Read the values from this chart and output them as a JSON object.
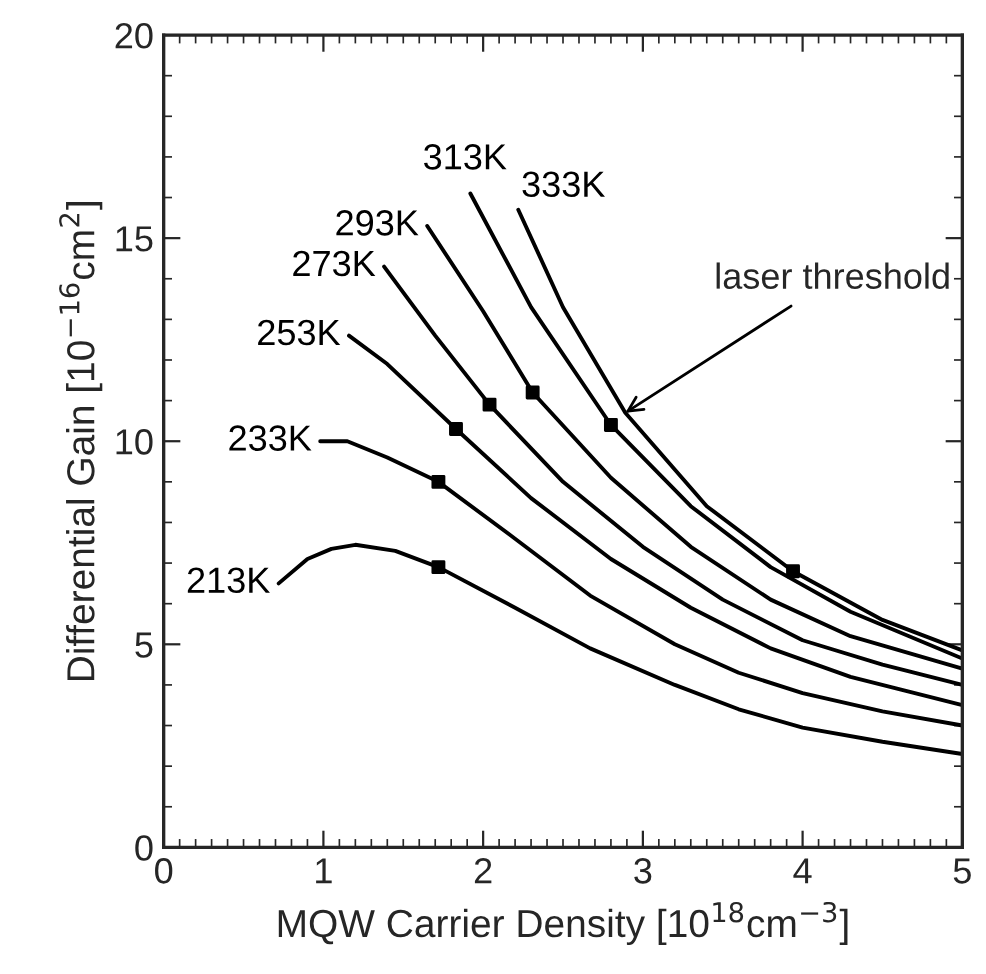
{
  "chart_data": {
    "type": "line",
    "xlabel": "MQW Carrier Density [10$^{18}$cm$^{−3}$]",
    "ylabel": "Differential Gain [10$^{−16}$cm$^{2}$]",
    "xlim": [
      0,
      5
    ],
    "ylim": [
      0,
      20
    ],
    "xticks": [
      0,
      1,
      2,
      3,
      4,
      5
    ],
    "yticks": [
      0,
      5,
      10,
      15,
      20
    ],
    "grid": false,
    "legend": false,
    "marker": "none",
    "line_style": "solid",
    "series": [
      {
        "name": "213K",
        "color": "#000000",
        "x": [
          0.72,
          0.9,
          1.05,
          1.2,
          1.45,
          1.72,
          2.2,
          2.67,
          3.2,
          3.6,
          4.0,
          4.5,
          5.0
        ],
        "values": [
          6.5,
          7.1,
          7.35,
          7.45,
          7.3,
          6.9,
          5.9,
          4.9,
          4.0,
          3.4,
          2.95,
          2.6,
          2.3
        ]
      },
      {
        "name": "233K",
        "color": "#000000",
        "x": [
          0.98,
          1.15,
          1.4,
          1.72,
          2.2,
          2.67,
          3.2,
          3.6,
          4.0,
          4.5,
          5.0
        ],
        "values": [
          10.0,
          10.0,
          9.6,
          9.0,
          7.6,
          6.2,
          5.0,
          4.3,
          3.8,
          3.35,
          3.0
        ]
      },
      {
        "name": "253K",
        "color": "#000000",
        "x": [
          1.16,
          1.4,
          1.83,
          2.3,
          2.8,
          3.3,
          3.8,
          4.3,
          5.0
        ],
        "values": [
          12.6,
          11.9,
          10.3,
          8.6,
          7.1,
          5.9,
          4.9,
          4.2,
          3.5
        ]
      },
      {
        "name": "273K",
        "color": "#000000",
        "x": [
          1.38,
          1.7,
          2.04,
          2.5,
          3.0,
          3.5,
          4.0,
          4.5,
          5.0
        ],
        "values": [
          14.3,
          12.6,
          10.9,
          9.0,
          7.4,
          6.1,
          5.1,
          4.5,
          4.0
        ]
      },
      {
        "name": "293K",
        "color": "#000000",
        "x": [
          1.65,
          2.0,
          2.31,
          2.8,
          3.3,
          3.8,
          4.3,
          5.0
        ],
        "values": [
          15.3,
          13.2,
          11.2,
          9.1,
          7.4,
          6.1,
          5.2,
          4.4
        ]
      },
      {
        "name": "313K",
        "color": "#000000",
        "x": [
          1.92,
          2.3,
          2.8,
          3.3,
          3.8,
          4.3,
          5.0
        ],
        "values": [
          16.1,
          13.3,
          10.4,
          8.4,
          6.9,
          5.8,
          4.65
        ]
      },
      {
        "name": "333K",
        "color": "#000000",
        "x": [
          2.22,
          2.5,
          2.89,
          3.4,
          3.94,
          4.5,
          5.0
        ],
        "values": [
          15.7,
          13.3,
          10.7,
          8.4,
          6.8,
          5.6,
          4.85
        ]
      },
      {
        "type": "scatter",
        "marker": "square",
        "color": "#000000",
        "x": [
          1.72,
          1.72,
          1.83,
          2.04,
          2.31,
          2.8,
          3.94
        ],
        "values": [
          6.9,
          9.0,
          10.3,
          10.9,
          11.2,
          10.4,
          6.8
        ]
      }
    ],
    "annotations": [
      {
        "text": "laser threshold",
        "x": 2.89,
        "y": 10.7
      }
    ]
  }
}
